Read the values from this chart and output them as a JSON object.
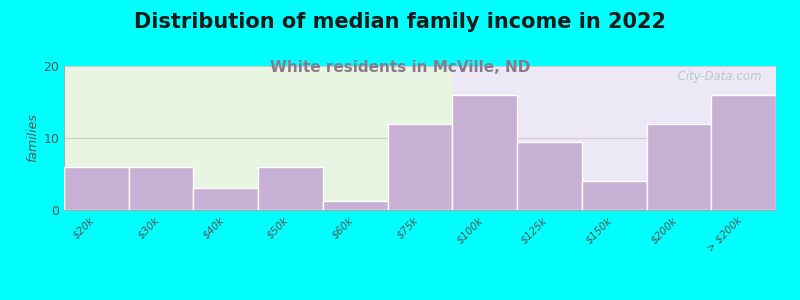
{
  "title": "Distribution of median family income in 2022",
  "subtitle": "White residents in McVille, ND",
  "ylabel": "families",
  "categories": [
    "$20k",
    "$30k",
    "$40k",
    "$50k",
    "$60k",
    "$75k",
    "$100k",
    "$125k",
    "$150k",
    "$200k",
    "> $200k"
  ],
  "values": [
    6,
    6,
    3,
    6,
    1.2,
    12,
    16,
    9.5,
    4,
    12,
    16
  ],
  "bar_color": "#c8afd4",
  "background_color": "#00ffff",
  "plot_bg_color_left": "#e8f5e2",
  "plot_bg_color_right": "#ede8f5",
  "ylim": [
    0,
    20
  ],
  "yticks": [
    0,
    10,
    20
  ],
  "title_fontsize": 15,
  "subtitle_fontsize": 11,
  "subtitle_color": "#8c7a8c",
  "bar_edge_color": "white",
  "watermark": "  City-Data.com",
  "watermark_color": "#b0c4cc"
}
